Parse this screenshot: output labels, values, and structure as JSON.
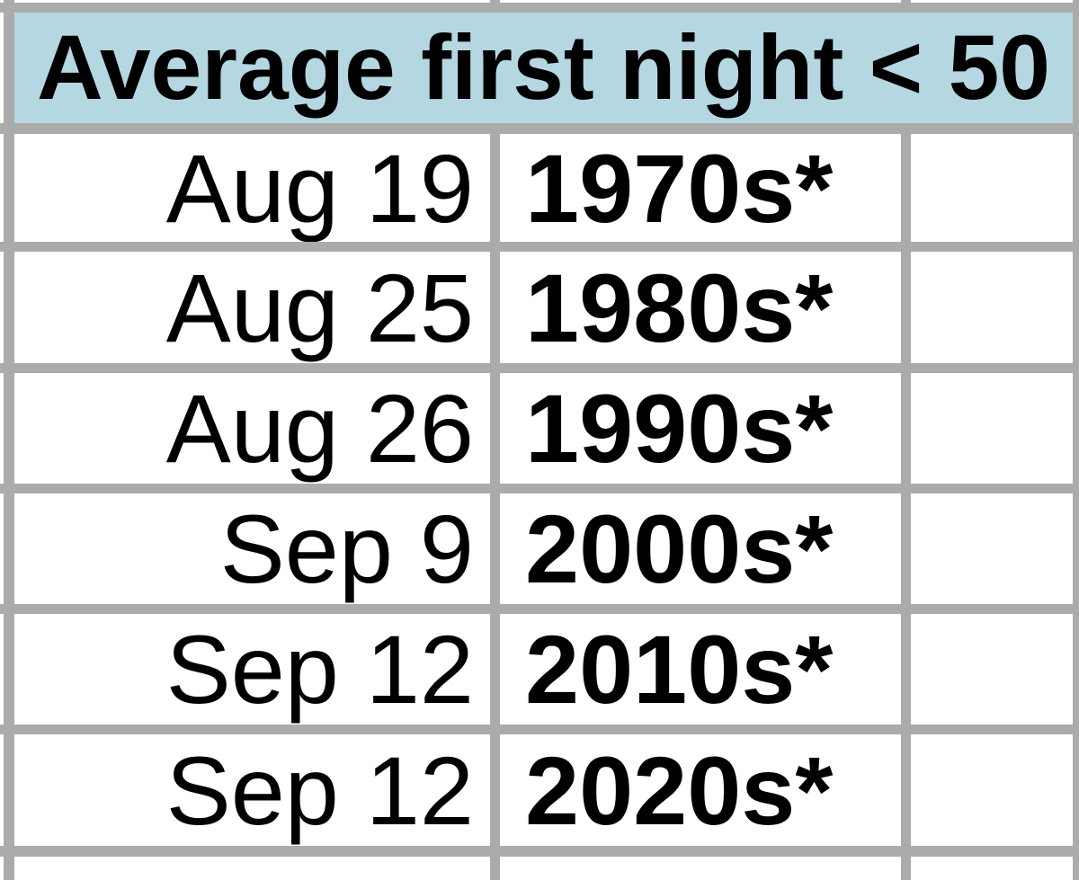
{
  "table": {
    "header": {
      "label": "Average first night < 50"
    },
    "rows": [
      {
        "date": "Aug 19",
        "decade": "1970s*"
      },
      {
        "date": "Aug 25",
        "decade": "1980s*"
      },
      {
        "date": "Aug 26",
        "decade": "1990s*"
      },
      {
        "date": "Sep 9",
        "decade": "2000s*"
      },
      {
        "date": "Sep 12",
        "decade": "2010s*"
      },
      {
        "date": "Sep 12",
        "decade": "2020s*"
      }
    ]
  },
  "colors": {
    "header_bg": "#b5d7e2",
    "gridline": "#ababab",
    "text": "#000000",
    "cell_bg": "#ffffff"
  }
}
